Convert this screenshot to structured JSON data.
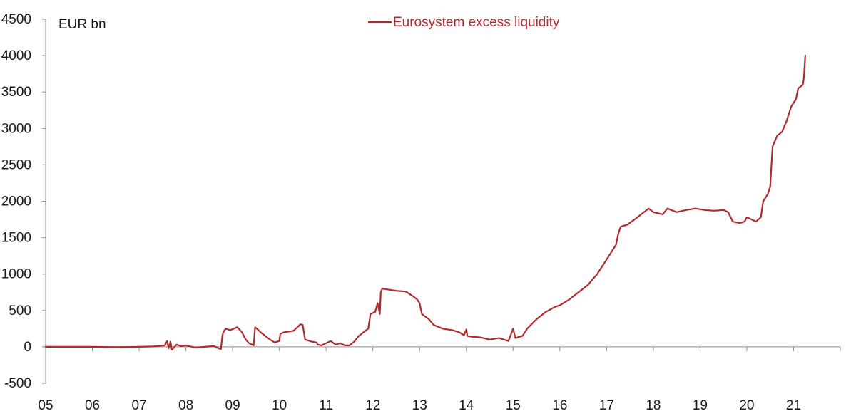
{
  "chart_data": {
    "type": "line",
    "unit_label": "EUR bn",
    "ylim": [
      -500,
      4500
    ],
    "yticks": [
      "-500",
      "0",
      "500",
      "1000",
      "1500",
      "2000",
      "2500",
      "3000",
      "3500",
      "4000",
      "4500"
    ],
    "xlim": [
      2005,
      2022
    ],
    "xticks": [
      "05",
      "06",
      "07",
      "08",
      "09",
      "10",
      "11",
      "12",
      "13",
      "14",
      "15",
      "16",
      "17",
      "18",
      "19",
      "20",
      "21"
    ],
    "grid": false,
    "legend_position": "top-center",
    "series": [
      {
        "name": "Eurosystem excess liquidity",
        "color": "#b22a2e",
        "points": [
          [
            2005.0,
            0
          ],
          [
            2005.5,
            0
          ],
          [
            2006.0,
            0
          ],
          [
            2006.5,
            -5
          ],
          [
            2007.0,
            0
          ],
          [
            2007.3,
            5
          ],
          [
            2007.55,
            20
          ],
          [
            2007.6,
            80
          ],
          [
            2007.63,
            -20
          ],
          [
            2007.67,
            70
          ],
          [
            2007.7,
            -40
          ],
          [
            2007.8,
            30
          ],
          [
            2007.9,
            10
          ],
          [
            2008.0,
            20
          ],
          [
            2008.2,
            -10
          ],
          [
            2008.4,
            0
          ],
          [
            2008.6,
            10
          ],
          [
            2008.7,
            -20
          ],
          [
            2008.75,
            -30
          ],
          [
            2008.78,
            150
          ],
          [
            2008.8,
            200
          ],
          [
            2008.85,
            250
          ],
          [
            2008.95,
            230
          ],
          [
            2009.1,
            270
          ],
          [
            2009.2,
            200
          ],
          [
            2009.28,
            100
          ],
          [
            2009.35,
            50
          ],
          [
            2009.45,
            20
          ],
          [
            2009.48,
            270
          ],
          [
            2009.52,
            250
          ],
          [
            2009.6,
            200
          ],
          [
            2009.7,
            150
          ],
          [
            2009.8,
            100
          ],
          [
            2009.9,
            60
          ],
          [
            2010.0,
            80
          ],
          [
            2010.02,
            180
          ],
          [
            2010.1,
            200
          ],
          [
            2010.2,
            210
          ],
          [
            2010.3,
            220
          ],
          [
            2010.4,
            280
          ],
          [
            2010.45,
            310
          ],
          [
            2010.5,
            300
          ],
          [
            2010.55,
            100
          ],
          [
            2010.7,
            70
          ],
          [
            2010.8,
            60
          ],
          [
            2010.82,
            30
          ],
          [
            2010.9,
            20
          ],
          [
            2011.0,
            50
          ],
          [
            2011.1,
            80
          ],
          [
            2011.2,
            30
          ],
          [
            2011.3,
            50
          ],
          [
            2011.4,
            20
          ],
          [
            2011.5,
            20
          ],
          [
            2011.6,
            70
          ],
          [
            2011.7,
            150
          ],
          [
            2011.8,
            200
          ],
          [
            2011.9,
            250
          ],
          [
            2011.95,
            450
          ],
          [
            2012.05,
            480
          ],
          [
            2012.1,
            600
          ],
          [
            2012.15,
            450
          ],
          [
            2012.17,
            750
          ],
          [
            2012.2,
            800
          ],
          [
            2012.3,
            790
          ],
          [
            2012.5,
            770
          ],
          [
            2012.7,
            760
          ],
          [
            2012.85,
            700
          ],
          [
            2012.95,
            650
          ],
          [
            2013.0,
            600
          ],
          [
            2013.05,
            450
          ],
          [
            2013.2,
            380
          ],
          [
            2013.3,
            300
          ],
          [
            2013.5,
            250
          ],
          [
            2013.7,
            230
          ],
          [
            2013.85,
            200
          ],
          [
            2013.95,
            160
          ],
          [
            2014.0,
            240
          ],
          [
            2014.02,
            150
          ],
          [
            2014.1,
            140
          ],
          [
            2014.3,
            130
          ],
          [
            2014.5,
            100
          ],
          [
            2014.7,
            120
          ],
          [
            2014.9,
            80
          ],
          [
            2015.0,
            250
          ],
          [
            2015.05,
            120
          ],
          [
            2015.2,
            150
          ],
          [
            2015.3,
            250
          ],
          [
            2015.5,
            380
          ],
          [
            2015.7,
            480
          ],
          [
            2015.9,
            550
          ],
          [
            2016.0,
            570
          ],
          [
            2016.2,
            650
          ],
          [
            2016.4,
            750
          ],
          [
            2016.6,
            850
          ],
          [
            2016.8,
            1000
          ],
          [
            2016.9,
            1100
          ],
          [
            2017.0,
            1200
          ],
          [
            2017.15,
            1350
          ],
          [
            2017.2,
            1400
          ],
          [
            2017.25,
            1550
          ],
          [
            2017.3,
            1650
          ],
          [
            2017.45,
            1680
          ],
          [
            2017.6,
            1750
          ],
          [
            2017.8,
            1850
          ],
          [
            2017.9,
            1900
          ],
          [
            2018.0,
            1850
          ],
          [
            2018.2,
            1820
          ],
          [
            2018.3,
            1900
          ],
          [
            2018.5,
            1850
          ],
          [
            2018.7,
            1880
          ],
          [
            2018.9,
            1900
          ],
          [
            2019.1,
            1880
          ],
          [
            2019.3,
            1870
          ],
          [
            2019.5,
            1880
          ],
          [
            2019.6,
            1850
          ],
          [
            2019.7,
            1720
          ],
          [
            2019.85,
            1700
          ],
          [
            2019.95,
            1720
          ],
          [
            2020.0,
            1780
          ],
          [
            2020.1,
            1750
          ],
          [
            2020.2,
            1720
          ],
          [
            2020.3,
            1780
          ],
          [
            2020.35,
            2000
          ],
          [
            2020.4,
            2050
          ],
          [
            2020.45,
            2100
          ],
          [
            2020.5,
            2200
          ],
          [
            2020.55,
            2750
          ],
          [
            2020.65,
            2900
          ],
          [
            2020.75,
            2950
          ],
          [
            2020.85,
            3100
          ],
          [
            2020.95,
            3300
          ],
          [
            2021.05,
            3400
          ],
          [
            2021.1,
            3550
          ],
          [
            2021.2,
            3600
          ],
          [
            2021.22,
            3700
          ],
          [
            2021.25,
            4000
          ]
        ]
      }
    ]
  }
}
